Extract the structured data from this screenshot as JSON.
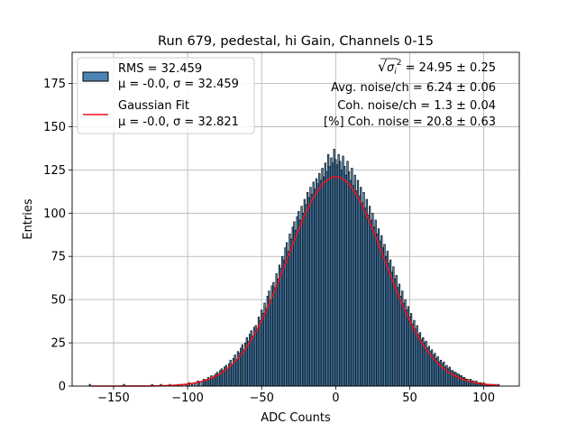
{
  "chart_data": {
    "type": "bar",
    "title": "Run 679, pedestal, hi Gain, Channels 0-15",
    "xlabel": "ADC Counts",
    "ylabel": "Entries",
    "xlim": [
      -178,
      124
    ],
    "ylim": [
      0,
      193
    ],
    "xticks": [
      -150,
      -100,
      -50,
      0,
      50,
      100
    ],
    "yticks": [
      0,
      25,
      50,
      75,
      100,
      125,
      150,
      175
    ],
    "grid": true,
    "legend_placement": "top-left",
    "legend": [
      {
        "label_line1": "RMS = 32.459",
        "label_line2": "μ = -0.0, σ = 32.459",
        "kind": "histogram"
      },
      {
        "label_line1": "Gaussian Fit",
        "label_line2": "μ = -0.0, σ = 32.821",
        "kind": "line"
      }
    ],
    "annotations": [
      {
        "prefix": "√",
        "radicand": "σ",
        "sub": "i",
        "sup": "2",
        "text": " = 24.95 ± 0.25"
      },
      {
        "text": "Avg. noise/ch = 6.24 ± 0.06"
      },
      {
        "text": "Coh. noise/ch = 1.3 ± 0.04"
      },
      {
        "text": "[%] Coh. noise = 20.8 ± 0.63"
      }
    ],
    "histogram": {
      "name": "RMS = 32.459",
      "bin_width": 1,
      "color": "#4c84b4",
      "edge_color": "#000000",
      "bins": [
        [
          -166,
          1
        ],
        [
          -163,
          0
        ],
        [
          -143,
          1
        ],
        [
          -124,
          1
        ],
        [
          -118,
          1
        ],
        [
          -112,
          1
        ],
        [
          -106,
          1
        ],
        [
          -104,
          1
        ],
        [
          -101,
          1
        ],
        [
          -99,
          2
        ],
        [
          -97,
          1
        ],
        [
          -95,
          2
        ],
        [
          -93,
          3
        ],
        [
          -92,
          2
        ],
        [
          -90,
          3
        ],
        [
          -89,
          4
        ],
        [
          -88,
          3
        ],
        [
          -87,
          4
        ],
        [
          -86,
          5
        ],
        [
          -85,
          4
        ],
        [
          -84,
          6
        ],
        [
          -83,
          5
        ],
        [
          -82,
          6
        ],
        [
          -81,
          7
        ],
        [
          -80,
          8
        ],
        [
          -79,
          7
        ],
        [
          -78,
          9
        ],
        [
          -77,
          10
        ],
        [
          -76,
          9
        ],
        [
          -75,
          11
        ],
        [
          -74,
          12
        ],
        [
          -73,
          10
        ],
        [
          -72,
          13
        ],
        [
          -71,
          15
        ],
        [
          -70,
          12
        ],
        [
          -69,
          16
        ],
        [
          -68,
          18
        ],
        [
          -67,
          15
        ],
        [
          -66,
          20
        ],
        [
          -65,
          19
        ],
        [
          -64,
          22
        ],
        [
          -63,
          24
        ],
        [
          -62,
          21
        ],
        [
          -61,
          25
        ],
        [
          -60,
          28
        ],
        [
          -59,
          26
        ],
        [
          -58,
          30
        ],
        [
          -57,
          32
        ],
        [
          -56,
          29
        ],
        [
          -55,
          34
        ],
        [
          -54,
          35
        ],
        [
          -53,
          33
        ],
        [
          -52,
          40
        ],
        [
          -51,
          38
        ],
        [
          -50,
          44
        ],
        [
          -49,
          42
        ],
        [
          -48,
          48
        ],
        [
          -47,
          45
        ],
        [
          -46,
          52
        ],
        [
          -45,
          55
        ],
        [
          -44,
          50
        ],
        [
          -43,
          58
        ],
        [
          -42,
          60
        ],
        [
          -41,
          57
        ],
        [
          -40,
          65
        ],
        [
          -39,
          62
        ],
        [
          -38,
          70
        ],
        [
          -37,
          68
        ],
        [
          -36,
          75
        ],
        [
          -35,
          73
        ],
        [
          -34,
          80
        ],
        [
          -33,
          83
        ],
        [
          -32,
          78
        ],
        [
          -31,
          88
        ],
        [
          -30,
          85
        ],
        [
          -29,
          92
        ],
        [
          -28,
          95
        ],
        [
          -27,
          90
        ],
        [
          -26,
          98
        ],
        [
          -25,
          101
        ],
        [
          -24,
          96
        ],
        [
          -23,
          104
        ],
        [
          -22,
          100
        ],
        [
          -21,
          108
        ],
        [
          -20,
          105
        ],
        [
          -19,
          112
        ],
        [
          -18,
          109
        ],
        [
          -17,
          115
        ],
        [
          -16,
          111
        ],
        [
          -15,
          118
        ],
        [
          -14,
          114
        ],
        [
          -13,
          120
        ],
        [
          -12,
          117
        ],
        [
          -11,
          123
        ],
        [
          -10,
          119
        ],
        [
          -9,
          126
        ],
        [
          -8,
          121
        ],
        [
          -7,
          129
        ],
        [
          -6,
          124
        ],
        [
          -5,
          134
        ],
        [
          -4,
          127
        ],
        [
          -3,
          132
        ],
        [
          -2,
          129
        ],
        [
          -1,
          137
        ],
        [
          0,
          131
        ],
        [
          1,
          128
        ],
        [
          2,
          134
        ],
        [
          3,
          130
        ],
        [
          4,
          125
        ],
        [
          5,
          133
        ],
        [
          6,
          127
        ],
        [
          7,
          122
        ],
        [
          8,
          130
        ],
        [
          9,
          124
        ],
        [
          10,
          119
        ],
        [
          11,
          126
        ],
        [
          12,
          116
        ],
        [
          13,
          122
        ],
        [
          14,
          113
        ],
        [
          15,
          119
        ],
        [
          16,
          110
        ],
        [
          17,
          115
        ],
        [
          18,
          106
        ],
        [
          19,
          112
        ],
        [
          20,
          103
        ],
        [
          21,
          108
        ],
        [
          22,
          99
        ],
        [
          23,
          104
        ],
        [
          24,
          96
        ],
        [
          25,
          100
        ],
        [
          26,
          92
        ],
        [
          27,
          96
        ],
        [
          28,
          88
        ],
        [
          29,
          91
        ],
        [
          30,
          84
        ],
        [
          31,
          87
        ],
        [
          32,
          80
        ],
        [
          33,
          82
        ],
        [
          34,
          75
        ],
        [
          35,
          78
        ],
        [
          36,
          71
        ],
        [
          37,
          73
        ],
        [
          38,
          66
        ],
        [
          39,
          69
        ],
        [
          40,
          62
        ],
        [
          41,
          64
        ],
        [
          42,
          57
        ],
        [
          43,
          59
        ],
        [
          44,
          52
        ],
        [
          45,
          55
        ],
        [
          46,
          48
        ],
        [
          47,
          50
        ],
        [
          48,
          44
        ],
        [
          49,
          46
        ],
        [
          50,
          40
        ],
        [
          51,
          42
        ],
        [
          52,
          36
        ],
        [
          53,
          38
        ],
        [
          54,
          33
        ],
        [
          55,
          35
        ],
        [
          56,
          30
        ],
        [
          57,
          31
        ],
        [
          58,
          27
        ],
        [
          59,
          28
        ],
        [
          60,
          25
        ],
        [
          61,
          26
        ],
        [
          62,
          22
        ],
        [
          63,
          23
        ],
        [
          64,
          20
        ],
        [
          65,
          21
        ],
        [
          66,
          18
        ],
        [
          67,
          19
        ],
        [
          68,
          16
        ],
        [
          69,
          17
        ],
        [
          70,
          14
        ],
        [
          71,
          15
        ],
        [
          72,
          13
        ],
        [
          73,
          14
        ],
        [
          74,
          11
        ],
        [
          75,
          12
        ],
        [
          76,
          10
        ],
        [
          77,
          11
        ],
        [
          78,
          9
        ],
        [
          79,
          9
        ],
        [
          80,
          8
        ],
        [
          81,
          8
        ],
        [
          82,
          7
        ],
        [
          83,
          7
        ],
        [
          84,
          6
        ],
        [
          85,
          6
        ],
        [
          86,
          5
        ],
        [
          87,
          5
        ],
        [
          88,
          4
        ],
        [
          89,
          4
        ],
        [
          90,
          3
        ],
        [
          91,
          4
        ],
        [
          92,
          3
        ],
        [
          93,
          3
        ],
        [
          94,
          2
        ],
        [
          95,
          3
        ],
        [
          96,
          2
        ],
        [
          97,
          2
        ],
        [
          98,
          2
        ],
        [
          99,
          1
        ],
        [
          100,
          2
        ],
        [
          101,
          1
        ],
        [
          102,
          1
        ],
        [
          103,
          1
        ],
        [
          104,
          1
        ],
        [
          105,
          1
        ],
        [
          106,
          1
        ],
        [
          108,
          1
        ],
        [
          110,
          1
        ]
      ]
    },
    "series": [
      {
        "name": "Gaussian Fit",
        "type": "line",
        "color": "#e8141c",
        "mu": 0.0,
        "sigma": 32.821,
        "amplitude": 121,
        "x_range": [
          -165,
          110
        ]
      }
    ]
  }
}
